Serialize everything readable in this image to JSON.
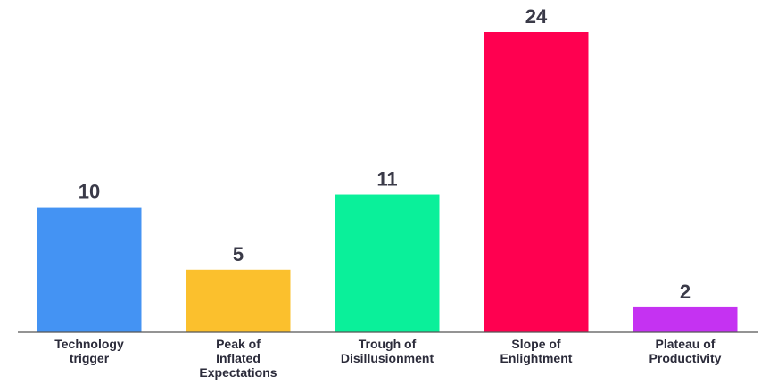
{
  "chart_data": {
    "type": "bar",
    "title": "",
    "xlabel": "",
    "ylabel": "",
    "categories": [
      [
        "Technology",
        "trigger"
      ],
      [
        "Peak of",
        "Inflated",
        "Expectations"
      ],
      [
        "Trough of",
        "Disillusionment"
      ],
      [
        "Slope of",
        "Enlightment"
      ],
      [
        "Plateau of",
        "Productivity"
      ]
    ],
    "values": [
      10,
      5,
      11,
      24,
      2
    ],
    "colors": [
      "#4493F3",
      "#FBC02D",
      "#0AF09A",
      "#FF0050",
      "#C532F2"
    ],
    "ylim": [
      0,
      24
    ],
    "grid": false,
    "legend": "none"
  }
}
